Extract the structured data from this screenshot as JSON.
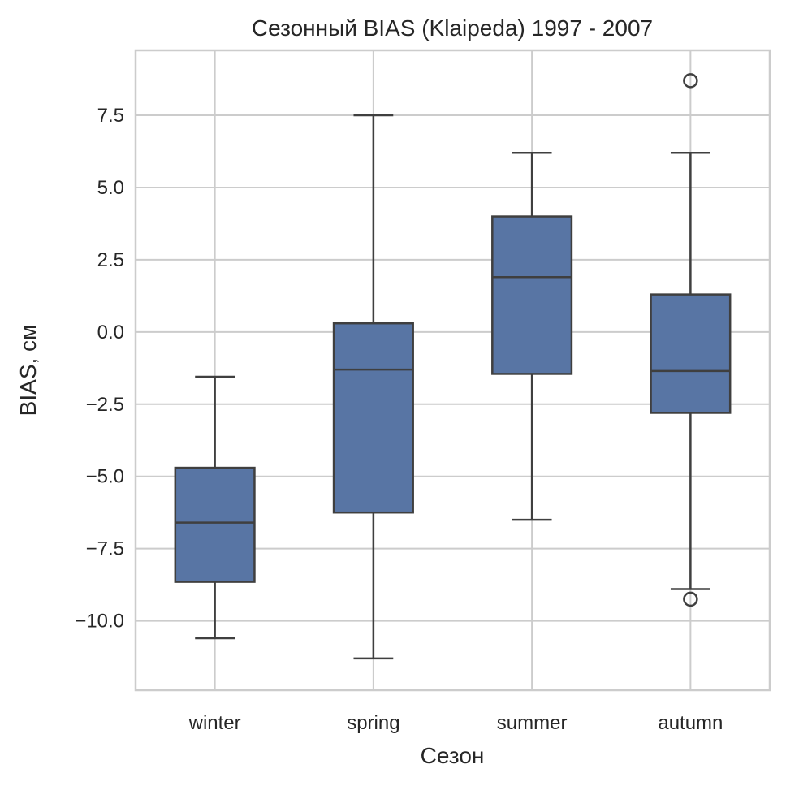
{
  "chart_data": {
    "type": "box",
    "title": "Сезонный BIAS (Klaipeda) 1997 - 2007",
    "xlabel": "Сезон",
    "ylabel": "BIAS, см",
    "categories": [
      "winter",
      "spring",
      "summer",
      "autumn"
    ],
    "ylim": [
      -12.4,
      9.75
    ],
    "yticks": [
      -10.0,
      -7.5,
      -5.0,
      -2.5,
      0.0,
      2.5,
      5.0,
      7.5
    ],
    "ytick_labels": [
      "−10.0",
      "−7.5",
      "−5.0",
      "−2.5",
      "0.0",
      "2.5",
      "5.0",
      "7.5"
    ],
    "grid": true,
    "box_color": "#5875a4",
    "line_color": "#3f3f3f",
    "grid_color": "#cccccc",
    "series": [
      {
        "category": "winter",
        "whisker_low": -10.6,
        "q1": -8.65,
        "median": -6.6,
        "q3": -4.7,
        "whisker_high": -1.55,
        "outliers": []
      },
      {
        "category": "spring",
        "whisker_low": -11.3,
        "q1": -6.25,
        "median": -1.3,
        "q3": 0.3,
        "whisker_high": 7.5,
        "outliers": []
      },
      {
        "category": "summer",
        "whisker_low": -6.5,
        "q1": -1.45,
        "median": 1.9,
        "q3": 4.0,
        "whisker_high": 6.2,
        "outliers": []
      },
      {
        "category": "autumn",
        "whisker_low": -8.9,
        "q1": -2.8,
        "median": -1.35,
        "q3": 1.3,
        "whisker_high": 6.2,
        "outliers": [
          8.7,
          -9.25
        ]
      }
    ]
  }
}
